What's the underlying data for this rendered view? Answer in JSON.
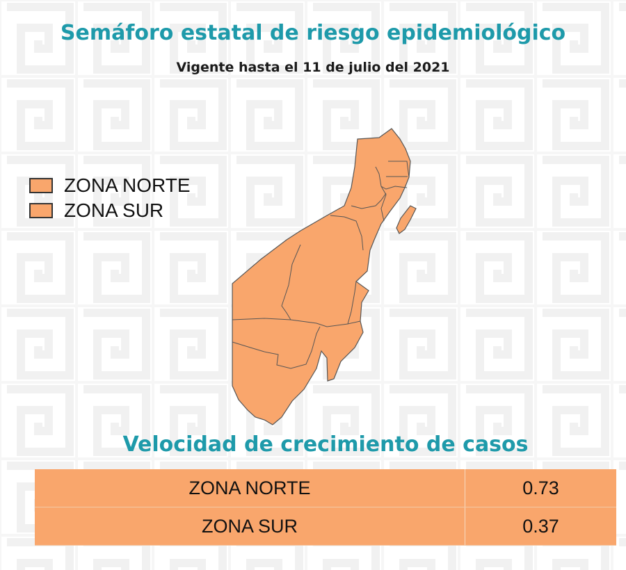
{
  "header": {
    "title": "Semáforo estatal de riesgo epidemiológico",
    "subtitle": "Vigente hasta el 11 de julio del 2021"
  },
  "legend": {
    "items": [
      {
        "label": "ZONA NORTE",
        "color": "#f9a66c"
      },
      {
        "label": "ZONA SUR",
        "color": "#f9a66c"
      }
    ]
  },
  "map": {
    "fill_color": "#f9a66c",
    "border_color": "#555555"
  },
  "growth_table": {
    "title": "Velocidad de crecimiento de casos",
    "row_color": "#f9a66c",
    "rows": [
      {
        "zone": "ZONA NORTE",
        "value": "0.73"
      },
      {
        "zone": "ZONA SUR",
        "value": "0.37"
      }
    ]
  },
  "colors": {
    "title_teal": "#1e9aaa",
    "pattern_gray": "#f2f2f2"
  }
}
